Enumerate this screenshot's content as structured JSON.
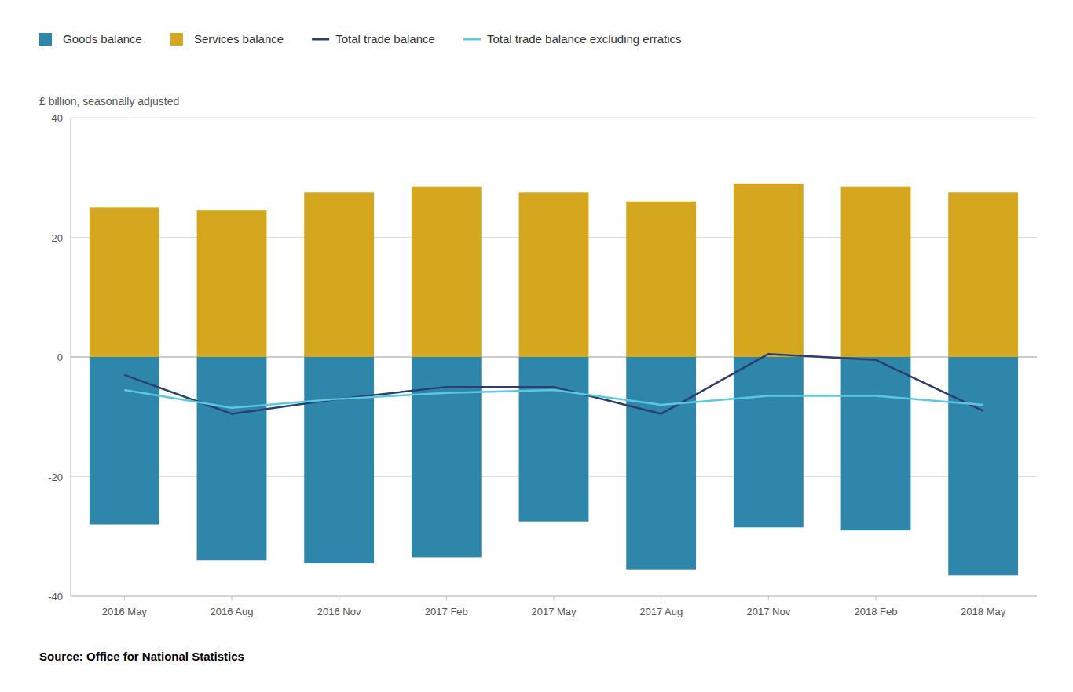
{
  "chart_data": {
    "type": "bar",
    "y_label": "£ billion, seasonally adjusted",
    "source": "Source: Office for National Statistics",
    "categories": [
      "2016 May",
      "2016 Aug",
      "2016 Nov",
      "2017 Feb",
      "2017 May",
      "2017 Aug",
      "2017 Nov",
      "2018 Feb",
      "2018 May"
    ],
    "series": [
      {
        "name": "Goods balance",
        "type": "bar",
        "color": "#2e86ab",
        "values": [
          -28.0,
          -34.0,
          -34.5,
          -33.5,
          -27.5,
          -35.5,
          -28.5,
          -29.0,
          -36.5
        ]
      },
      {
        "name": "Services balance",
        "type": "bar",
        "color": "#d4a71e",
        "values": [
          25.0,
          24.5,
          27.5,
          28.5,
          27.5,
          26.0,
          29.0,
          28.5,
          27.5
        ]
      },
      {
        "name": "Total trade balance",
        "type": "line",
        "color": "#2c3e6e",
        "values": [
          -3.0,
          -9.5,
          -7.0,
          -5.0,
          -5.0,
          -9.5,
          0.5,
          -0.5,
          -9.0
        ]
      },
      {
        "name": "Total trade balance excluding erratics",
        "type": "line",
        "color": "#5bc8e0",
        "values": [
          -5.5,
          -8.5,
          -7.0,
          -6.0,
          -5.5,
          -8.0,
          -6.5,
          -6.5,
          -8.0
        ]
      }
    ],
    "stacked": true,
    "ylim": [
      -40,
      40
    ],
    "yticks": [
      -40,
      -20,
      0,
      20,
      40
    ],
    "grid": true,
    "legend": "top"
  }
}
